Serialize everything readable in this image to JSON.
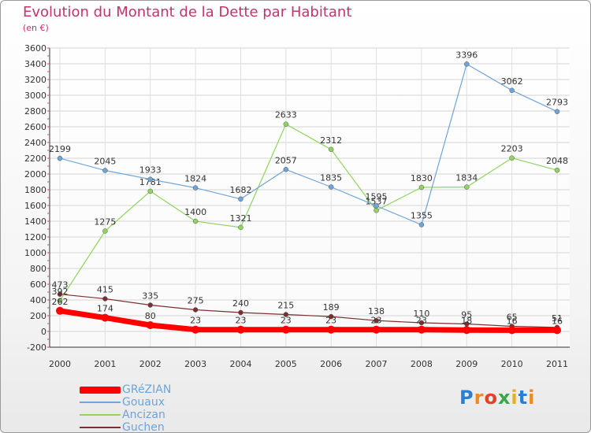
{
  "chart_data": {
    "type": "line",
    "title": "Evolution du Montant de la Dette par Habitant",
    "subtitle": "(en €)",
    "xlabel": "",
    "ylabel": "",
    "categories": [
      "2000",
      "2001",
      "2002",
      "2003",
      "2004",
      "2005",
      "2006",
      "2007",
      "2008",
      "2009",
      "2010",
      "2011"
    ],
    "ylim": [
      -200,
      3600
    ],
    "yticks": [
      "-200",
      "0",
      "200",
      "400",
      "600",
      "800",
      "1000",
      "1200",
      "1400",
      "1600",
      "1800",
      "2000",
      "2200",
      "2400",
      "2600",
      "2800",
      "3000",
      "3200",
      "3400",
      "3600"
    ],
    "series": [
      {
        "name": "GRéZIAN",
        "color": "#ff0000",
        "values": [
          262,
          174,
          80,
          23,
          23,
          23,
          23,
          23,
          23,
          18,
          16,
          16
        ],
        "labels": [
          "262",
          "174",
          "80",
          "23",
          "23",
          "23",
          "23",
          "23",
          "23",
          "18",
          "16",
          "16"
        ]
      },
      {
        "name": "Gouaux",
        "color": "#6ea4d8",
        "values": [
          2199,
          2045,
          1933,
          1824,
          1682,
          2057,
          1835,
          1595,
          1355,
          3396,
          3062,
          2793
        ],
        "labels": [
          "2199",
          "2045",
          "1933",
          "1824",
          "1682",
          "2057",
          "1835",
          "1595",
          "1355",
          "3396",
          "3062",
          "2793"
        ]
      },
      {
        "name": "Ancizan",
        "color": "#8fd45e",
        "values": [
          392,
          1275,
          1781,
          1400,
          1321,
          2633,
          2312,
          1537,
          1830,
          1834,
          2203,
          2048
        ],
        "labels": [
          "392",
          "1275",
          "1781",
          "1400",
          "1321",
          "2633",
          "2312",
          "1537",
          "1830",
          "1834",
          "2203",
          "2048"
        ]
      },
      {
        "name": "Guchen",
        "color": "#7a3030",
        "values": [
          473,
          415,
          335,
          275,
          240,
          215,
          189,
          138,
          110,
          95,
          65,
          51
        ],
        "labels": [
          "473",
          "415",
          "335",
          "275",
          "240",
          "215",
          "189",
          "138",
          "110",
          "95",
          "65",
          "51"
        ]
      }
    ]
  },
  "logo": {
    "text": "Proxiti",
    "colors": [
      "#2a7fd4",
      "#f08a20",
      "#e5402a",
      "#3aa84a",
      "#e5b020",
      "#2a7fd4",
      "#f08a20"
    ]
  }
}
